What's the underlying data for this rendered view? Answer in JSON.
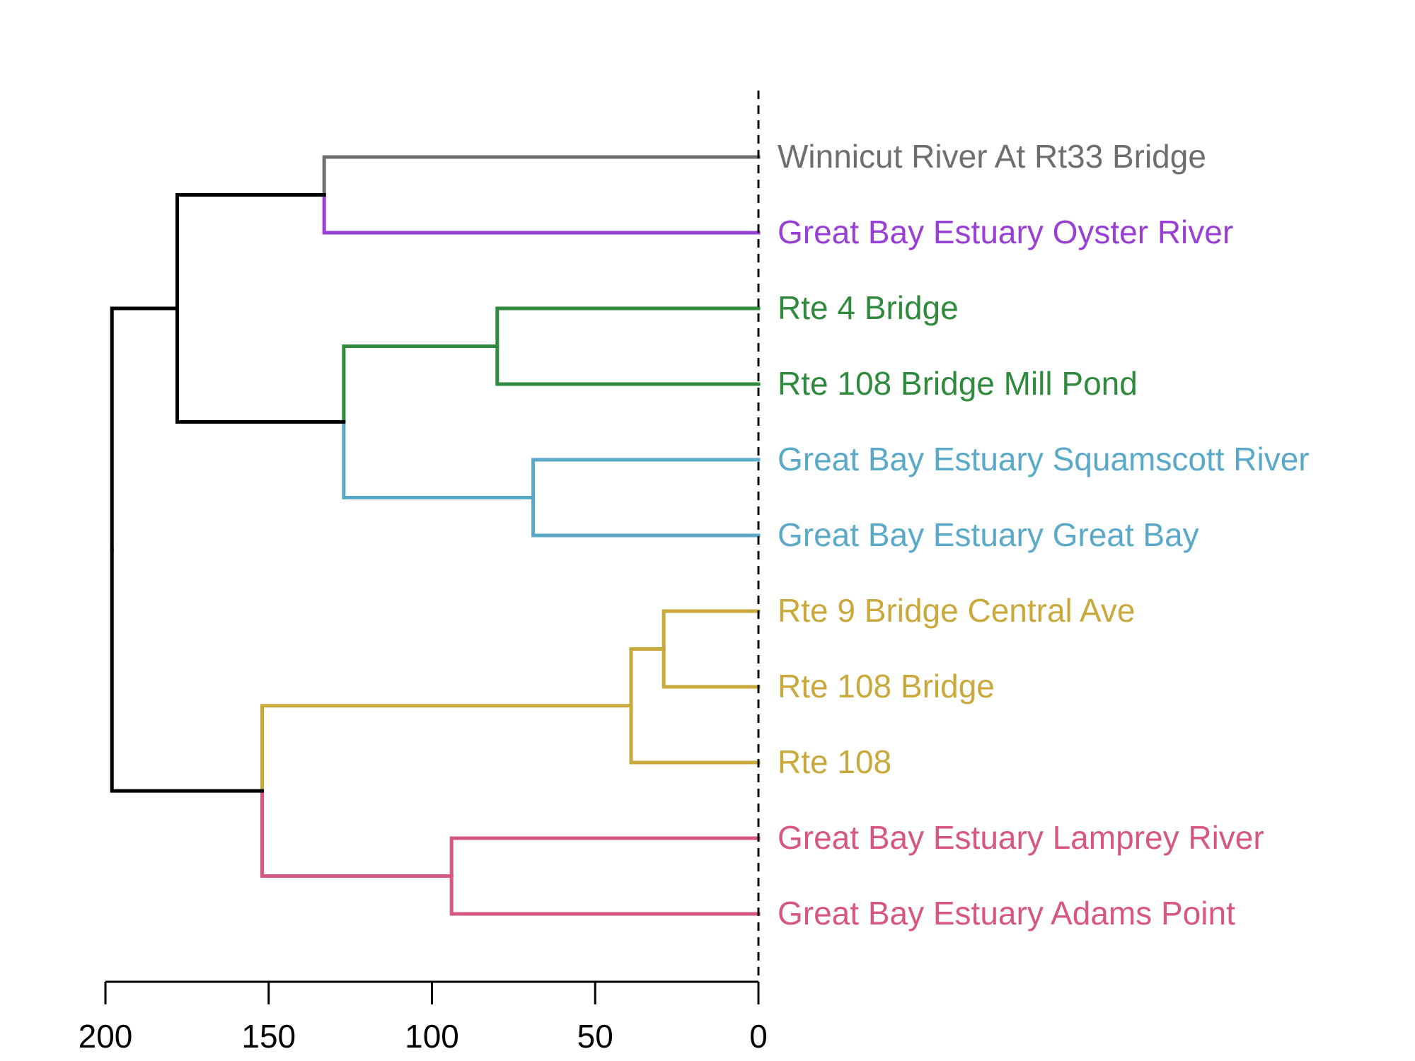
{
  "chart_data": {
    "type": "dendrogram",
    "orientation": "horizontal",
    "leaves": [
      {
        "label": "Winnicut River At Rt33 Bridge",
        "color": "#6e6e6e"
      },
      {
        "label": "Great Bay Estuary Oyster River",
        "color": "#9a3fd6"
      },
      {
        "label": "Rte 4 Bridge",
        "color": "#2f8a3e"
      },
      {
        "label": "Rte 108 Bridge Mill Pond",
        "color": "#2f8a3e"
      },
      {
        "label": "Great Bay Estuary Squamscott River",
        "color": "#5aa9c9"
      },
      {
        "label": "Great Bay Estuary Great Bay",
        "color": "#5aa9c9"
      },
      {
        "label": "Rte 9 Bridge Central Ave",
        "color": "#c9a93c"
      },
      {
        "label": "Rte 108 Bridge",
        "color": "#c9a93c"
      },
      {
        "label": "Rte 108",
        "color": "#c9a93c"
      },
      {
        "label": "Great Bay Estuary Lamprey River",
        "color": "#d6587e"
      },
      {
        "label": "Great Bay Estuary Adams Point",
        "color": "#d6587e"
      }
    ],
    "merges": [
      {
        "a": "L0",
        "b": "L1",
        "height": 133,
        "color_a": "#6e6e6e",
        "color_b": "#9a3fd6"
      },
      {
        "a": "L2",
        "b": "L3",
        "height": 80,
        "color_a": "#2f8a3e",
        "color_b": "#2f8a3e"
      },
      {
        "a": "L4",
        "b": "L5",
        "height": 69,
        "color_a": "#5aa9c9",
        "color_b": "#5aa9c9"
      },
      {
        "a": "M1",
        "b": "M2",
        "height": 127,
        "color_a": "#2f8a3e",
        "color_b": "#5aa9c9"
      },
      {
        "a": "M0",
        "b": "M3",
        "height": 178,
        "color_a": "#000000",
        "color_b": "#000000"
      },
      {
        "a": "L6",
        "b": "L7",
        "height": 29,
        "color_a": "#c9a93c",
        "color_b": "#c9a93c"
      },
      {
        "a": "M5",
        "b": "L8",
        "height": 39,
        "color_a": "#c9a93c",
        "color_b": "#c9a93c"
      },
      {
        "a": "L9",
        "b": "L10",
        "height": 94,
        "color_a": "#d6587e",
        "color_b": "#d6587e"
      },
      {
        "a": "M6",
        "b": "M7",
        "height": 152,
        "color_a": "#c9a93c",
        "color_b": "#d6587e"
      },
      {
        "a": "M4",
        "b": "M8",
        "height": 198,
        "color_a": "#000000",
        "color_b": "#000000"
      }
    ],
    "x_axis": {
      "reversed": true,
      "range": [
        200,
        0
      ],
      "ticks": [
        200,
        150,
        100,
        50,
        0
      ],
      "tick_labels": [
        "200",
        "150",
        "100",
        "50",
        "0"
      ]
    },
    "cut_line": {
      "at": 0,
      "style": "dashed"
    }
  }
}
